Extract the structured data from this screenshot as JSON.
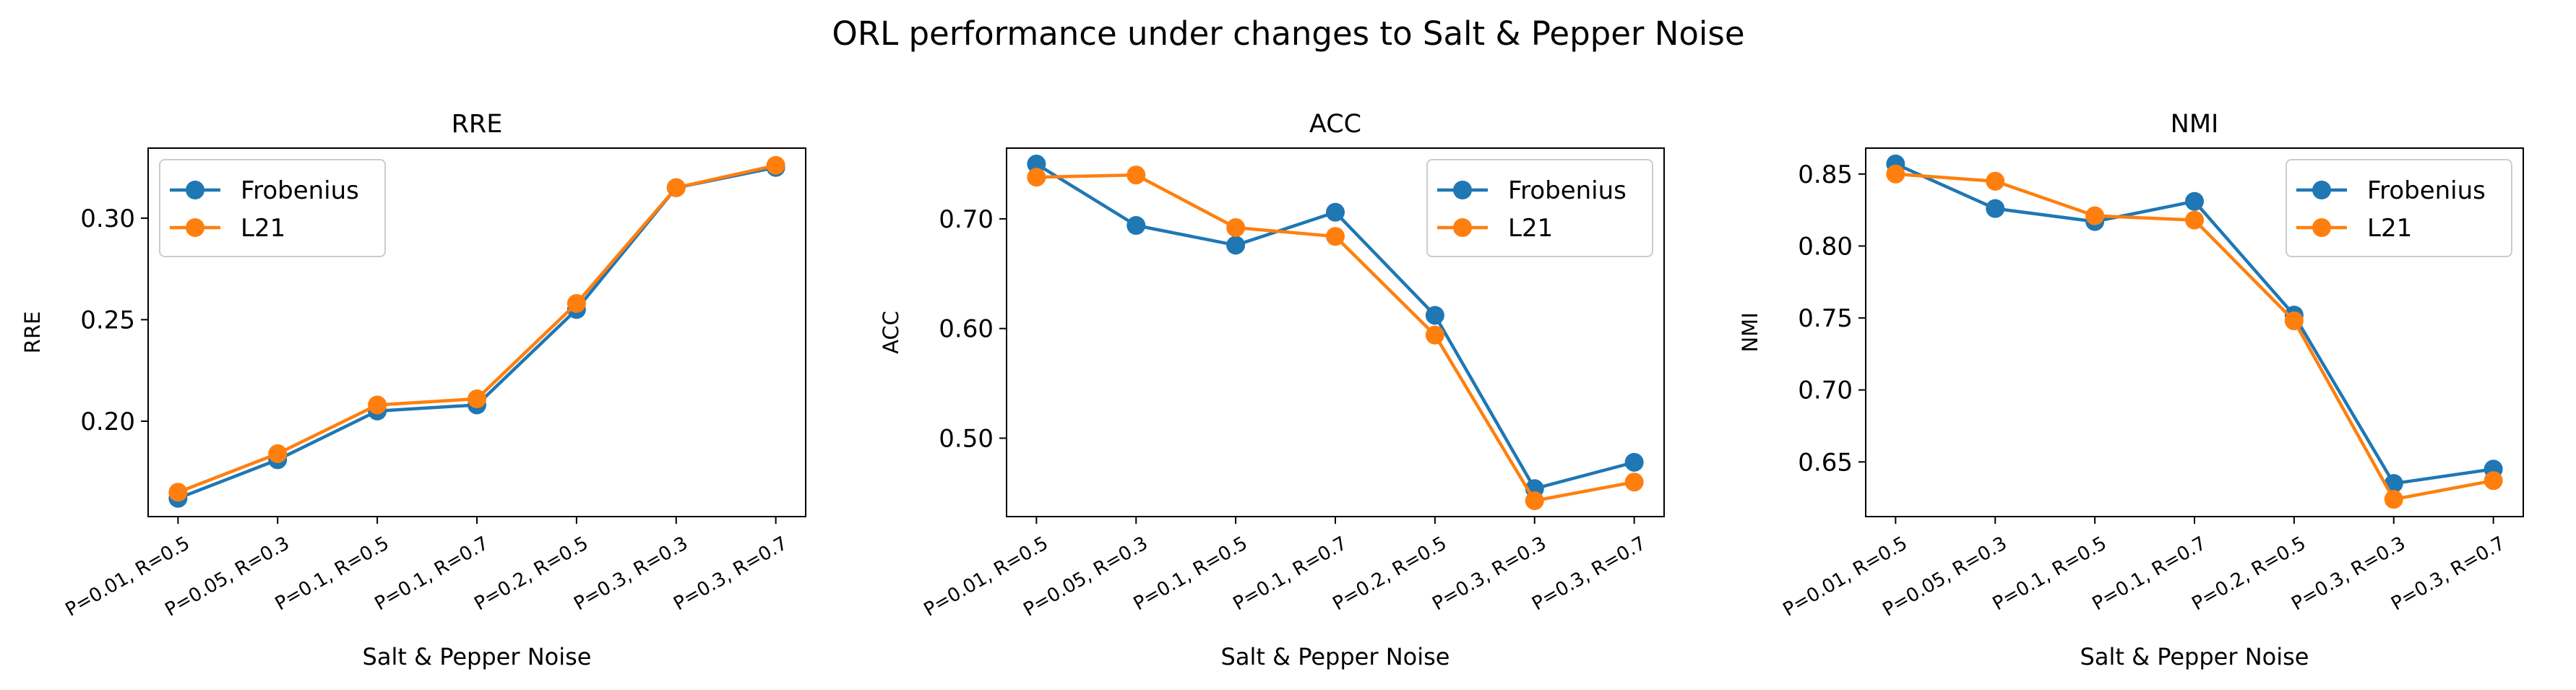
{
  "figure_title": "ORL performance under changes to Salt & Pepper Noise",
  "colors": {
    "Frobenius": "#1f77b4",
    "L21": "#ff7f0e"
  },
  "chart_data": [
    {
      "type": "line",
      "title": "RRE",
      "xlabel": "Salt & Pepper Noise",
      "ylabel": "RRE",
      "categories": [
        "P=0.01, R=0.5",
        "P=0.05, R=0.3",
        "P=0.1, R=0.5",
        "P=0.1, R=0.7",
        "P=0.2, R=0.5",
        "P=0.3, R=0.3",
        "P=0.3, R=0.7"
      ],
      "ylim": [
        0.153,
        0.3345
      ],
      "yticks": [
        0.2,
        0.25,
        0.3
      ],
      "ytick_labels": [
        "0.20",
        "0.25",
        "0.30"
      ],
      "legend": "upper left",
      "grid": false,
      "series": [
        {
          "name": "Frobenius",
          "values": [
            0.162,
            0.181,
            0.205,
            0.208,
            0.255,
            0.315,
            0.325
          ]
        },
        {
          "name": "L21",
          "values": [
            0.165,
            0.184,
            0.208,
            0.211,
            0.258,
            0.315,
            0.326
          ]
        }
      ]
    },
    {
      "type": "line",
      "title": "ACC",
      "xlabel": "Salt & Pepper Noise",
      "ylabel": "ACC",
      "categories": [
        "P=0.01, R=0.5",
        "P=0.05, R=0.3",
        "P=0.1, R=0.5",
        "P=0.1, R=0.7",
        "P=0.2, R=0.5",
        "P=0.3, R=0.3",
        "P=0.3, R=0.7"
      ],
      "ylim": [
        0.4285,
        0.7645
      ],
      "yticks": [
        0.5,
        0.6,
        0.7
      ],
      "ytick_labels": [
        "0.50",
        "0.60",
        "0.70"
      ],
      "legend": "upper right",
      "grid": false,
      "series": [
        {
          "name": "Frobenius",
          "values": [
            0.75,
            0.694,
            0.676,
            0.706,
            0.612,
            0.454,
            0.478
          ]
        },
        {
          "name": "L21",
          "values": [
            0.738,
            0.74,
            0.692,
            0.684,
            0.594,
            0.443,
            0.46
          ]
        }
      ]
    },
    {
      "type": "line",
      "title": "NMI",
      "xlabel": "Salt & Pepper Noise",
      "ylabel": "NMI",
      "categories": [
        "P=0.01, R=0.5",
        "P=0.05, R=0.3",
        "P=0.1, R=0.5",
        "P=0.1, R=0.7",
        "P=0.2, R=0.5",
        "P=0.3, R=0.3",
        "P=0.3, R=0.7"
      ],
      "ylim": [
        0.612,
        0.868
      ],
      "yticks": [
        0.65,
        0.7,
        0.75,
        0.8,
        0.85
      ],
      "ytick_labels": [
        "0.65",
        "0.70",
        "0.75",
        "0.80",
        "0.85"
      ],
      "legend": "upper right",
      "grid": false,
      "series": [
        {
          "name": "Frobenius",
          "values": [
            0.857,
            0.826,
            0.817,
            0.831,
            0.752,
            0.635,
            0.645
          ]
        },
        {
          "name": "L21",
          "values": [
            0.85,
            0.845,
            0.821,
            0.818,
            0.748,
            0.624,
            0.637
          ]
        }
      ]
    }
  ]
}
